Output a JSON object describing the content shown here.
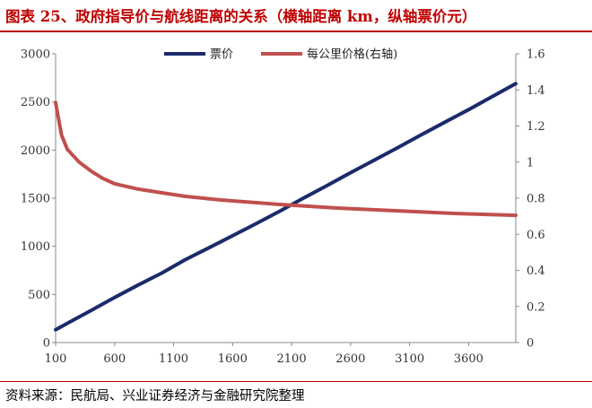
{
  "figure": {
    "title": "图表 25、政府指导价与航线距离的关系（横轴距离 km，纵轴票价元）",
    "source": "资料来源：民航局、兴业证券经济与金融研究院整理"
  },
  "chart_data": {
    "type": "line",
    "x_ticks": [
      100,
      600,
      1100,
      1600,
      2100,
      2600,
      3100,
      3600
    ],
    "xlim": [
      100,
      4000
    ],
    "y_left": {
      "ticks": [
        0,
        500,
        1000,
        1500,
        2000,
        2500,
        3000
      ],
      "ylim": [
        0,
        3000
      ]
    },
    "y_right": {
      "ticks": [
        0,
        0.2,
        0.4,
        0.6,
        0.8,
        1,
        1.2,
        1.4,
        1.6
      ],
      "ylim": [
        0,
        1.6
      ]
    },
    "grid": false,
    "legend": "top-center",
    "series": [
      {
        "name": "票价",
        "axis": "left",
        "color": "#1b2a6b",
        "x": [
          100,
          200,
          400,
          600,
          800,
          1000,
          1200,
          1400,
          1600,
          1800,
          2000,
          2200,
          2400,
          2600,
          2800,
          3000,
          3200,
          3400,
          3600,
          3800,
          4000
        ],
        "y": [
          133,
          200,
          333,
          469,
          598,
          722,
          862,
          985,
          1110,
          1235,
          1365,
          1500,
          1630,
          1765,
          1895,
          2025,
          2160,
          2290,
          2420,
          2555,
          2690
        ]
      },
      {
        "name": "每公里价格(右轴)",
        "axis": "right",
        "color": "#c0504d",
        "x": [
          100,
          150,
          200,
          300,
          400,
          500,
          600,
          800,
          1000,
          1200,
          1500,
          1800,
          2000,
          2500,
          3000,
          3500,
          4000
        ],
        "y": [
          1.33,
          1.15,
          1.07,
          1.0,
          0.95,
          0.91,
          0.88,
          0.85,
          0.83,
          0.81,
          0.79,
          0.775,
          0.765,
          0.745,
          0.73,
          0.715,
          0.705
        ]
      }
    ]
  }
}
